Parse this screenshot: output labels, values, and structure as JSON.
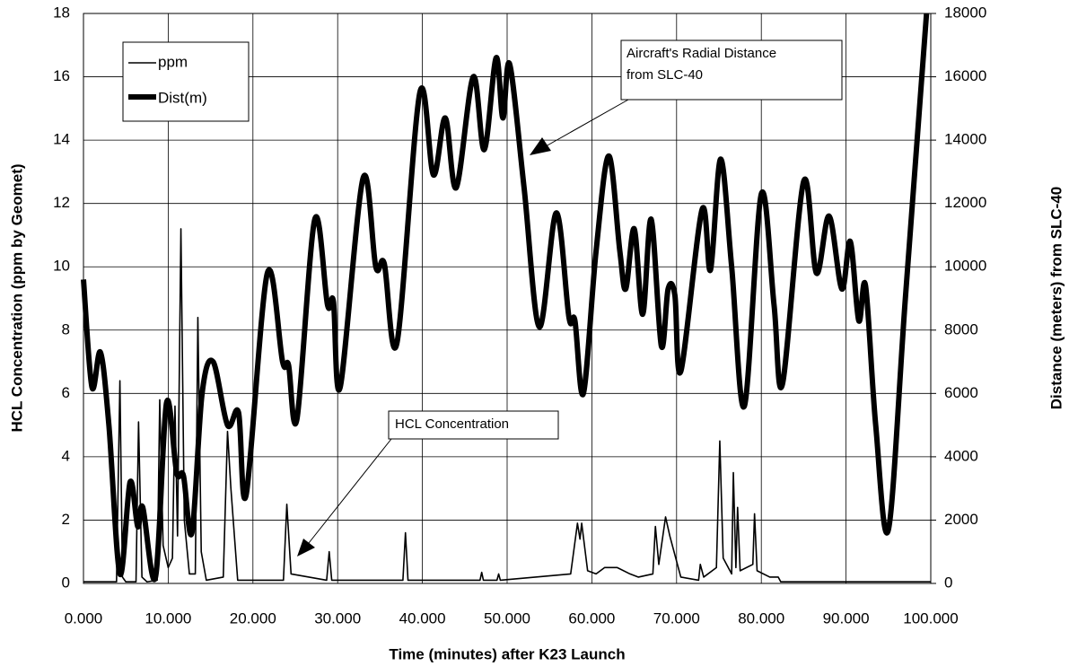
{
  "chart_data": {
    "type": "line",
    "x_label": "Time (minutes) after K23 Launch",
    "y_label": "HCL Concentration (ppm by Geomet)",
    "y2_label": "Distance (meters) from SLC-40",
    "xlim": [
      0,
      100
    ],
    "xticks": [
      {
        "value": 0,
        "label": "0.000"
      },
      {
        "value": 10,
        "label": "10.000"
      },
      {
        "value": 20,
        "label": "20.000"
      },
      {
        "value": 30,
        "label": "30.000"
      },
      {
        "value": 40,
        "label": "40.000"
      },
      {
        "value": 50,
        "label": "50.000"
      },
      {
        "value": 60,
        "label": "60.000"
      },
      {
        "value": 70,
        "label": "70.000"
      },
      {
        "value": 80,
        "label": "80.000"
      },
      {
        "value": 90,
        "label": "90.000"
      },
      {
        "value": 100,
        "label": "100.000"
      }
    ],
    "ylim": [
      0,
      18
    ],
    "yticks": [
      0,
      2,
      4,
      6,
      8,
      10,
      12,
      14,
      16,
      18
    ],
    "y2lim": [
      0,
      18000
    ],
    "y2ticks": [
      0,
      2000,
      4000,
      6000,
      8000,
      10000,
      12000,
      14000,
      16000,
      18000
    ],
    "grid": true,
    "legend": "upper left",
    "annotations": [
      {
        "lines": [
          "Aircraft's Radial Distance",
          "from SLC-40"
        ]
      },
      {
        "lines": [
          "HCL Concentration"
        ]
      }
    ],
    "series": [
      {
        "name": "ppm",
        "color": "#000000",
        "axis": "y",
        "x": [
          0,
          3.9,
          4.3,
          4.6,
          5,
          6.2,
          6.5,
          6.9,
          7.5,
          8.7,
          9,
          9.4,
          10,
          10.5,
          10.8,
          11.1,
          11.5,
          11.9,
          12.5,
          13.2,
          13.5,
          13.9,
          14.5,
          16.5,
          17,
          17.4,
          18.2,
          23.6,
          24,
          24.5,
          28.7,
          29,
          29.3,
          37.7,
          38,
          38.3,
          46.8,
          47,
          47.2,
          48.8,
          49,
          49.2,
          57.5,
          58.3,
          58.6,
          58.8,
          59.5,
          60.5,
          61.5,
          63,
          64.5,
          65.5,
          67.2,
          67.5,
          67.9,
          68.7,
          69.2,
          70.5,
          72.6,
          72.8,
          73.2,
          74.7,
          75.1,
          75.5,
          76.5,
          76.7,
          77,
          77.2,
          77.5,
          79,
          79.2,
          79.5,
          81,
          82,
          82.3,
          100
        ],
        "values": [
          0.05,
          0.05,
          6.4,
          0.2,
          0.05,
          0.05,
          5.1,
          0.2,
          0.05,
          0.1,
          5.8,
          1.2,
          0.5,
          0.8,
          5.6,
          1.5,
          11.2,
          2.0,
          0.3,
          0.3,
          8.4,
          1.0,
          0.1,
          0.2,
          4.8,
          3.0,
          0.1,
          0.1,
          2.5,
          0.3,
          0.1,
          1.0,
          0.1,
          0.1,
          1.6,
          0.1,
          0.1,
          0.35,
          0.1,
          0.1,
          0.3,
          0.1,
          0.3,
          1.9,
          1.4,
          1.9,
          0.4,
          0.3,
          0.5,
          0.5,
          0.3,
          0.2,
          0.3,
          1.8,
          0.6,
          2.1,
          1.5,
          0.2,
          0.1,
          0.6,
          0.2,
          0.5,
          4.5,
          0.8,
          0.3,
          3.5,
          0.5,
          2.4,
          0.4,
          0.6,
          2.2,
          0.4,
          0.2,
          0.2,
          0.05,
          0.05
        ]
      },
      {
        "name": "Dist(m)",
        "color": "#000000",
        "axis": "y2",
        "x": [
          0,
          1,
          2,
          3,
          4.3,
          5.5,
          6.4,
          7,
          8.5,
          9.8,
          11,
          11.8,
          12.8,
          14,
          15.3,
          17,
          18.3,
          19.2,
          21.7,
          23.5,
          24.2,
          25.2,
          27.3,
          28.8,
          29.5,
          30.3,
          33,
          34.5,
          35.5,
          37,
          39.7,
          41.3,
          42.7,
          44,
          46,
          47.3,
          48.7,
          49.5,
          50.3,
          52,
          53.8,
          55.8,
          57.3,
          58,
          59,
          60.5,
          62,
          63.3,
          64,
          65,
          66,
          67,
          68.2,
          69,
          69.8,
          70.5,
          73,
          74,
          75.2,
          76.5,
          78,
          80,
          81.5,
          82.5,
          85,
          86.5,
          88,
          89.5,
          90.5,
          91.5,
          92.3,
          93.5,
          95,
          97,
          99.5
        ],
        "values": [
          9600,
          6200,
          7300,
          5000,
          300,
          3200,
          1800,
          2400,
          200,
          5700,
          3500,
          3400,
          1600,
          6000,
          7000,
          5000,
          5400,
          2800,
          9800,
          7000,
          6900,
          5200,
          11500,
          8800,
          8900,
          6200,
          12800,
          10000,
          10100,
          7600,
          15500,
          12900,
          14700,
          12500,
          16000,
          13700,
          16600,
          14700,
          16400,
          12500,
          8100,
          11700,
          8400,
          8300,
          6000,
          10500,
          13500,
          10500,
          9300,
          11200,
          8500,
          11500,
          7500,
          9300,
          9100,
          6700,
          11800,
          9900,
          13400,
          10000,
          5600,
          12300,
          8800,
          6300,
          12700,
          9800,
          11600,
          9300,
          10800,
          8300,
          9400,
          5000,
          1700,
          9000,
          18000
        ]
      }
    ]
  }
}
